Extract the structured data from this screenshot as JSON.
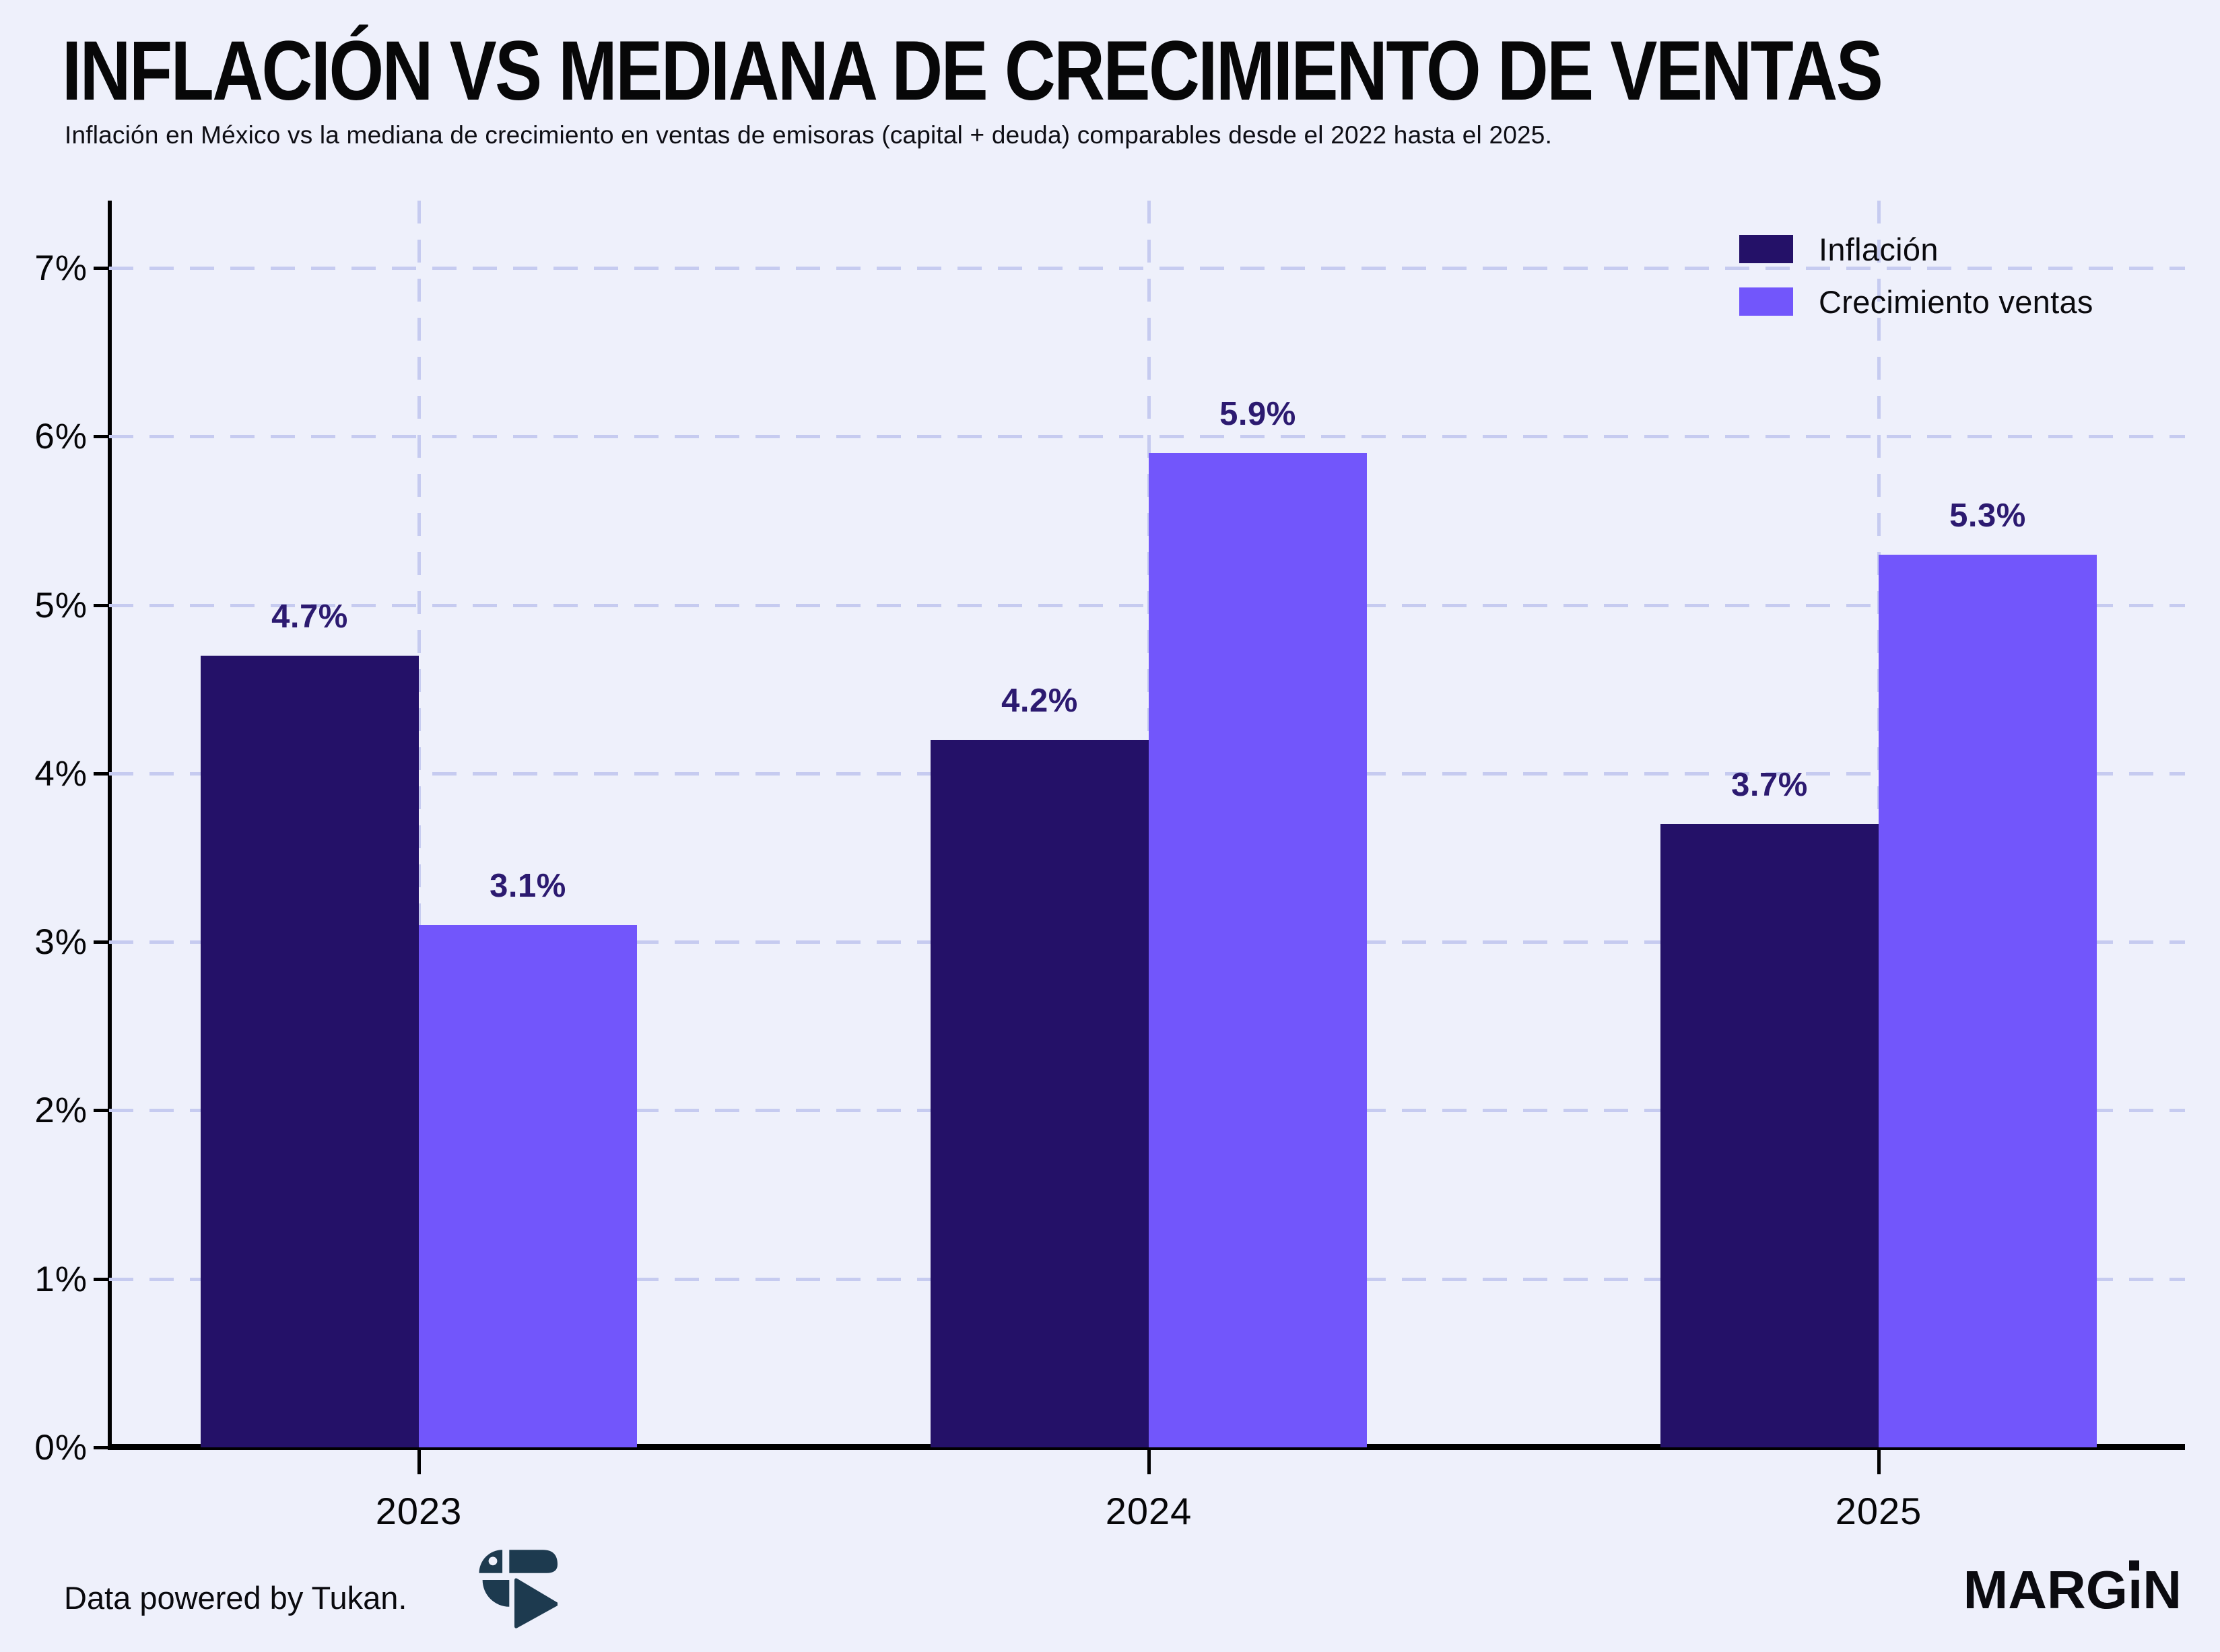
{
  "title": "INFLACIÓN VS MEDIANA DE CRECIMIENTO DE VENTAS",
  "subtitle": "Inflación en México vs la mediana de crecimiento en ventas de emisoras (capital + deuda) comparables desde el 2022 hasta el 2025.",
  "legend": {
    "position": "top-right",
    "items": [
      {
        "label": "Inflación",
        "color": "#241168"
      },
      {
        "label": "Crecimiento ventas",
        "color": "#7256fb"
      }
    ]
  },
  "footer": {
    "data_credit": "Data powered by Tukan.",
    "tukan_icon": "tukan-bird-logo",
    "brand_prefix": "MARG",
    "brand_i": "ı",
    "brand_suffix": "N",
    "brand_full": "MARGIN"
  },
  "colors": {
    "background": "#eef0fb",
    "inflacion_bar": "#241168",
    "crecimiento_bar": "#7256fb",
    "value_label": "#2c1a70",
    "gridline": "#c6cbf0",
    "axis": "#000000",
    "tukan_logo": "#1d3a4f",
    "text": "#0a0a0e"
  },
  "chart_data": {
    "type": "bar",
    "title": "INFLACIÓN VS MEDIANA DE CRECIMIENTO DE VENTAS",
    "categories": [
      "2023",
      "2024",
      "2025"
    ],
    "series": [
      {
        "name": "Inflación",
        "color": "#241168",
        "values": [
          4.7,
          4.2,
          3.7
        ]
      },
      {
        "name": "Crecimiento ventas",
        "color": "#7256fb",
        "values": [
          3.1,
          5.9,
          5.3
        ]
      }
    ],
    "value_labels": [
      [
        "4.7%",
        "4.2%",
        "3.7%"
      ],
      [
        "3.1%",
        "5.9%",
        "5.3%"
      ]
    ],
    "xlabel": "",
    "ylabel": "",
    "y_tick_labels": [
      "0%",
      "1%",
      "2%",
      "3%",
      "4%",
      "5%",
      "6%",
      "7%"
    ],
    "ylim": [
      0,
      7.4
    ],
    "grid": "dashed",
    "legend_position": "top-right"
  }
}
